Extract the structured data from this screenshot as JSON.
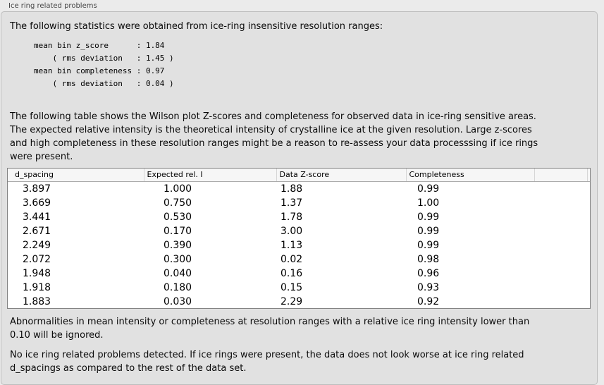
{
  "colors": {
    "page_bg": "#ebebeb",
    "panel_bg": "#e1e1e1",
    "panel_border": "#bdbdbd",
    "table_bg": "#ffffff",
    "table_border": "#838383",
    "table_header_bg": "#f6f6f6",
    "text": "#0a0a0a",
    "label_text": "#454545"
  },
  "panel": {
    "title": "Ice ring related problems",
    "intro": "The following statistics were obtained from ice-ring insensitive resolution ranges:",
    "stats_block": "mean bin z_score      : 1.84\n    ( rms deviation   : 1.45 )\nmean bin completeness : 0.97\n    ( rms deviation   : 0.04 )",
    "table_description": "The following table shows the Wilson plot Z-scores and completeness for observed data in ice-ring sensitive areas.\nThe expected relative intensity is the theoretical intensity of crystalline ice at the given resolution. Large z-scores\nand high completeness in these resolution ranges might be a reason to re-assess your data processsing if ice rings\nwere present.",
    "table": {
      "columns": [
        "d_spacing",
        "Expected rel. I",
        "Data Z-score",
        "Completeness"
      ],
      "rows": [
        [
          "3.897",
          "1.000",
          "1.88",
          "0.99"
        ],
        [
          "3.669",
          "0.750",
          "1.37",
          "1.00"
        ],
        [
          "3.441",
          "0.530",
          "1.78",
          "0.99"
        ],
        [
          "2.671",
          "0.170",
          "3.00",
          "0.99"
        ],
        [
          "2.249",
          "0.390",
          "1.13",
          "0.99"
        ],
        [
          "2.072",
          "0.300",
          "0.02",
          "0.98"
        ],
        [
          "1.948",
          "0.040",
          "0.16",
          "0.96"
        ],
        [
          "1.918",
          "0.180",
          "0.15",
          "0.93"
        ],
        [
          "1.883",
          "0.030",
          "2.29",
          "0.92"
        ]
      ]
    },
    "note_ignore": "Abnormalities in mean intensity or completeness at resolution ranges with a relative ice ring intensity lower than\n0.10 will be ignored.",
    "conclusion": "No ice ring related problems detected. If ice rings were present, the data does not look worse at ice ring related\nd_spacings as compared to the rest of the data set."
  }
}
